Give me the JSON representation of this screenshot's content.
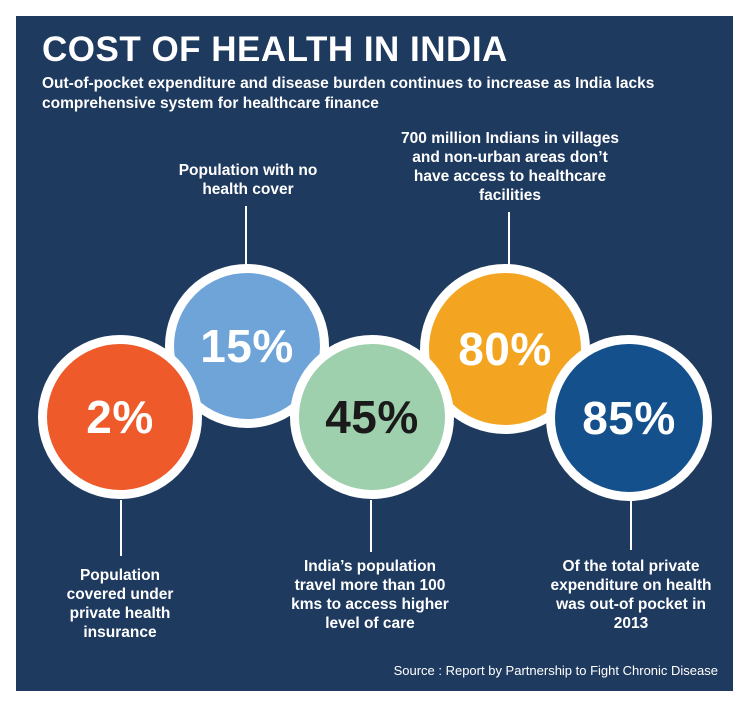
{
  "header": {
    "title": "COST OF HEALTH IN INDIA",
    "subtitle": "Out-of-pocket expenditure and disease burden continues to increase as India lacks comprehensive system for healthcare finance"
  },
  "stats": [
    {
      "value": "2%",
      "label": "Population covered under private health insurance",
      "color": "#ee5a2a"
    },
    {
      "value": "15%",
      "label": "Population with no health cover",
      "color": "#6fa4d8"
    },
    {
      "value": "45%",
      "label": "India’s population travel more than 100 kms to access higher level of care",
      "color": "#9fd0ad"
    },
    {
      "value": "80%",
      "label": "700 million Indians in villages and non-urban areas don’t have access to healthcare facilities",
      "color": "#f3a521"
    },
    {
      "value": "85%",
      "label": "Of the total private expenditure on health was out-of pocket in 2013",
      "color": "#14508c"
    }
  ],
  "source": "Source : Report by Partnership to Fight Chronic Disease",
  "colors": {
    "background": "#1f3a5f",
    "ring": "#ffffff"
  }
}
